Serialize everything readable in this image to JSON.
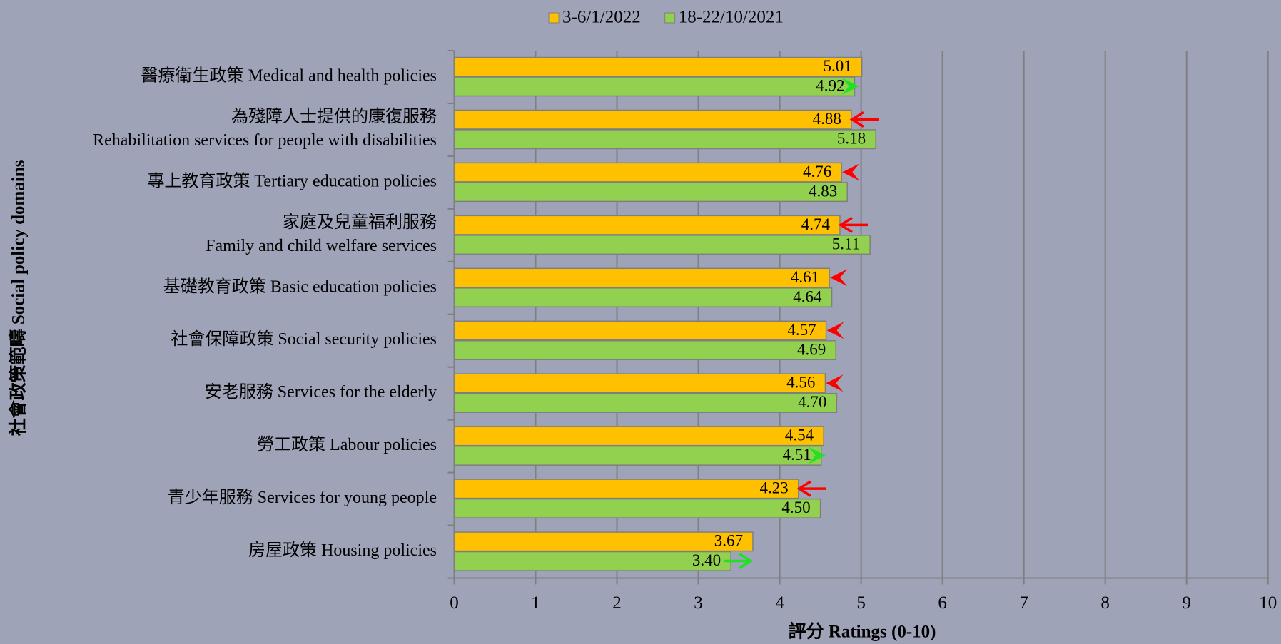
{
  "chart_data": {
    "type": "hbar",
    "x_axis_label": "評分 Ratings (0-10)",
    "y_axis_label": "社會政策範疇 Social policy domains",
    "categories": [
      [
        "醫療衛生政策 Medical and health policies"
      ],
      [
        "為殘障人士提供的康復服務",
        "Rehabilitation services for people with disabilities"
      ],
      [
        "專上教育政策 Tertiary education policies"
      ],
      [
        "家庭及兒童福利服務",
        "Family and child welfare services"
      ],
      [
        "基礎教育政策 Basic education policies"
      ],
      [
        "社會保障政策 Social security policies"
      ],
      [
        "安老服務 Services for the elderly"
      ],
      [
        "勞工政策 Labour policies"
      ],
      [
        "青少年服務  Services for young people"
      ],
      [
        "房屋政策 Housing policies"
      ]
    ],
    "series": [
      {
        "name": "3-6/1/2022",
        "color": "#ffc000",
        "values": [
          5.01,
          4.88,
          4.76,
          4.74,
          4.61,
          4.57,
          4.56,
          4.54,
          4.23,
          3.67
        ],
        "value_labels": [
          "5.01",
          "4.88",
          "4.76",
          "4.74",
          "4.61",
          "4.57",
          "4.56",
          "4.54",
          "4.23",
          "3.67"
        ]
      },
      {
        "name": "18-22/10/2021",
        "color": "#92d050",
        "values": [
          4.92,
          5.18,
          4.83,
          5.11,
          4.64,
          4.69,
          4.7,
          4.51,
          4.5,
          3.4
        ],
        "value_labels": [
          "4.92",
          "5.18",
          "4.83",
          "5.11",
          "4.64",
          "4.69",
          "4.70",
          "4.51",
          "4.50",
          "3.40"
        ]
      }
    ],
    "change_markers": [
      "green-chevron",
      "red-arrow",
      "red-chevron",
      "red-arrow",
      "red-chevron",
      "red-chevron",
      "red-chevron",
      "green-chevron",
      "red-arrow",
      "green-arrow"
    ],
    "marker_colors": {
      "red": "#ff0000",
      "green": "#22e022"
    },
    "xlim": [
      0,
      10
    ],
    "xticks": [
      0,
      1,
      2,
      3,
      4,
      5,
      6,
      7,
      8,
      9,
      10
    ],
    "grid": true,
    "legend": "top"
  }
}
